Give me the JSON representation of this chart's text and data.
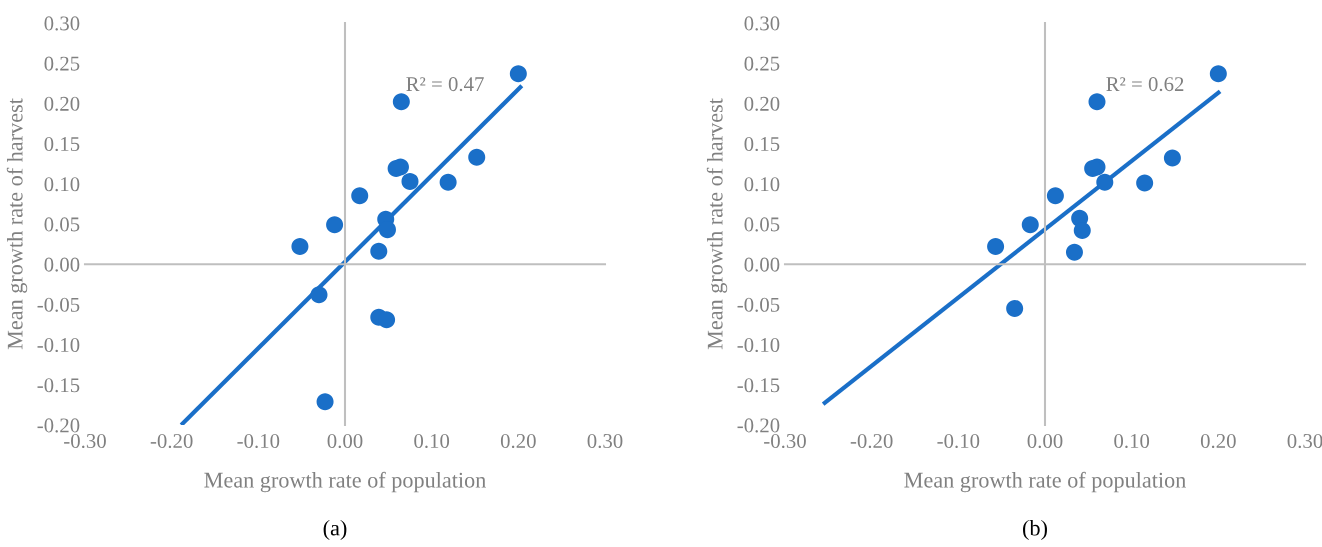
{
  "chart_data": [
    {
      "type": "scatter",
      "title": "(a)",
      "xlabel": "Mean growth rate of population",
      "ylabel": "Mean growth rate of harvest",
      "xlim": [
        -0.3,
        0.3
      ],
      "xticks": [
        {
          "value": -0.3,
          "label": "-0.30"
        },
        {
          "value": -0.2,
          "label": "-0.20"
        },
        {
          "value": -0.1,
          "label": "-0.10"
        },
        {
          "value": 0,
          "label": "0.00"
        },
        {
          "value": 0.1,
          "label": "0.10"
        },
        {
          "value": 0.2,
          "label": "0.20"
        },
        {
          "value": 0.3,
          "label": "0.30"
        }
      ],
      "ylim": [
        -0.2,
        0.3
      ],
      "yticks": [
        {
          "value": -0.2,
          "label": "-0.20"
        },
        {
          "value": -0.15,
          "label": "-0.15"
        },
        {
          "value": -0.1,
          "label": "-0.10"
        },
        {
          "value": -0.05,
          "label": "-0.05"
        },
        {
          "value": 0,
          "label": "0.00"
        },
        {
          "value": 0.05,
          "label": "0.05"
        },
        {
          "value": 0.1,
          "label": "0.10"
        },
        {
          "value": 0.15,
          "label": "0.15"
        },
        {
          "value": 0.2,
          "label": "0.20"
        },
        {
          "value": 0.25,
          "label": "0.25"
        },
        {
          "value": 0.3,
          "label": "0.30"
        }
      ],
      "annotations": [
        {
          "text": "R² = 0.47",
          "x": 0.07,
          "y": 0.21
        }
      ],
      "series": [
        {
          "type": "scatter",
          "marker": "circle",
          "color": "#1a6fc8",
          "x": [
            0.2,
            0.065,
            0.152,
            0.064,
            0.059,
            0.075,
            0.119,
            0.017,
            0.047,
            0.049,
            0.039,
            -0.012,
            -0.052,
            -0.03,
            0.039,
            0.048,
            -0.023
          ],
          "values": [
            0.237,
            0.202,
            0.133,
            0.121,
            0.119,
            0.103,
            0.102,
            0.085,
            0.056,
            0.043,
            0.016,
            0.049,
            0.022,
            -0.038,
            -0.066,
            -0.069,
            -0.171
          ]
        },
        {
          "type": "line",
          "marker": "none",
          "color": "#1a6fc8",
          "line_style": "solid",
          "x": [
            -0.189,
            0.204
          ],
          "values": [
            -0.2,
            0.222
          ]
        }
      ]
    },
    {
      "type": "scatter",
      "title": "(b)",
      "xlabel": "Mean growth rate of population",
      "ylabel": "Mean growth rate of harvest",
      "xlim": [
        -0.3,
        0.3
      ],
      "xticks": [
        {
          "value": -0.3,
          "label": "-0.30"
        },
        {
          "value": -0.2,
          "label": "-0.20"
        },
        {
          "value": -0.1,
          "label": "-0.10"
        },
        {
          "value": 0,
          "label": "0.00"
        },
        {
          "value": 0.1,
          "label": "0.10"
        },
        {
          "value": 0.2,
          "label": "0.20"
        },
        {
          "value": 0.3,
          "label": "0.30"
        }
      ],
      "ylim": [
        -0.2,
        0.3
      ],
      "yticks": [
        {
          "value": -0.2,
          "label": "-0.20"
        },
        {
          "value": -0.15,
          "label": "-0.15"
        },
        {
          "value": -0.1,
          "label": "-0.10"
        },
        {
          "value": -0.05,
          "label": "-0.05"
        },
        {
          "value": 0,
          "label": "0.00"
        },
        {
          "value": 0.05,
          "label": "0.05"
        },
        {
          "value": 0.1,
          "label": "0.10"
        },
        {
          "value": 0.15,
          "label": "0.15"
        },
        {
          "value": 0.2,
          "label": "0.20"
        },
        {
          "value": 0.25,
          "label": "0.25"
        },
        {
          "value": 0.3,
          "label": "0.30"
        }
      ],
      "annotations": [
        {
          "text": "R² = 0.62",
          "x": 0.07,
          "y": 0.21
        }
      ],
      "series": [
        {
          "type": "scatter",
          "marker": "circle",
          "color": "#1a6fc8",
          "x": [
            0.2,
            0.06,
            0.147,
            0.06,
            0.055,
            0.069,
            0.115,
            0.012,
            0.04,
            0.043,
            0.034,
            -0.017,
            -0.057,
            -0.035
          ],
          "values": [
            0.237,
            0.202,
            0.132,
            0.121,
            0.119,
            0.102,
            0.101,
            0.085,
            0.057,
            0.042,
            0.015,
            0.049,
            0.022,
            -0.055
          ]
        },
        {
          "type": "line",
          "marker": "none",
          "color": "#1a6fc8",
          "line_style": "solid",
          "x": [
            -0.256,
            0.202
          ],
          "values": [
            -0.174,
            0.215
          ]
        }
      ]
    }
  ]
}
